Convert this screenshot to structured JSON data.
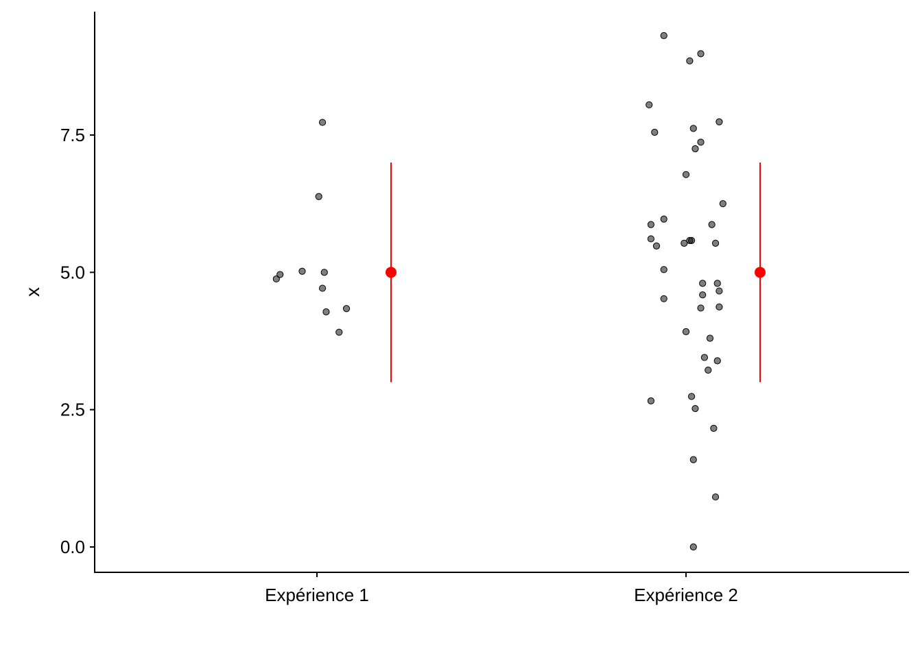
{
  "chart_data": {
    "type": "scatter",
    "title": "",
    "xlabel": "",
    "ylabel": "x",
    "ylim": [
      -0.9,
      9.65
    ],
    "y_ticks": [
      0.0,
      2.5,
      5.0,
      7.5
    ],
    "y_tick_labels": [
      "0.0",
      "2.5",
      "5.0",
      "7.5"
    ],
    "categories": [
      "Expérience 1",
      "Expérience 2"
    ],
    "grid": false,
    "legend": "none",
    "point_color": "#000000",
    "summary_color": "#ff0000",
    "series": [
      {
        "category": "Expérience 1",
        "points": [
          {
            "x": 1.015,
            "y": 7.73
          },
          {
            "x": 1.005,
            "y": 6.38
          },
          {
            "x": 0.96,
            "y": 5.02
          },
          {
            "x": 1.02,
            "y": 5.0
          },
          {
            "x": 0.9,
            "y": 4.96
          },
          {
            "x": 0.89,
            "y": 4.88
          },
          {
            "x": 1.015,
            "y": 4.71
          },
          {
            "x": 1.08,
            "y": 4.34
          },
          {
            "x": 1.025,
            "y": 4.28
          },
          {
            "x": 1.06,
            "y": 3.91
          }
        ],
        "summary": {
          "mean": 5.0,
          "lower": 3.0,
          "upper": 7.0
        }
      },
      {
        "category": "Expérience 2",
        "points": [
          {
            "x": 0.94,
            "y": 9.31
          },
          {
            "x": 1.04,
            "y": 8.98
          },
          {
            "x": 1.01,
            "y": 8.85
          },
          {
            "x": 0.9,
            "y": 8.05
          },
          {
            "x": 1.09,
            "y": 7.74
          },
          {
            "x": 1.02,
            "y": 7.62
          },
          {
            "x": 0.915,
            "y": 7.55
          },
          {
            "x": 1.04,
            "y": 7.37
          },
          {
            "x": 1.025,
            "y": 7.25
          },
          {
            "x": 1.0,
            "y": 6.78
          },
          {
            "x": 1.1,
            "y": 6.25
          },
          {
            "x": 0.94,
            "y": 5.97
          },
          {
            "x": 0.905,
            "y": 5.87
          },
          {
            "x": 1.07,
            "y": 5.87
          },
          {
            "x": 0.905,
            "y": 5.61
          },
          {
            "x": 1.01,
            "y": 5.58
          },
          {
            "x": 1.015,
            "y": 5.58
          },
          {
            "x": 0.995,
            "y": 5.53
          },
          {
            "x": 1.08,
            "y": 5.53
          },
          {
            "x": 0.92,
            "y": 5.48
          },
          {
            "x": 0.94,
            "y": 5.05
          },
          {
            "x": 1.045,
            "y": 4.8
          },
          {
            "x": 1.085,
            "y": 4.8
          },
          {
            "x": 1.09,
            "y": 4.66
          },
          {
            "x": 1.045,
            "y": 4.59
          },
          {
            "x": 0.94,
            "y": 4.52
          },
          {
            "x": 1.09,
            "y": 4.37
          },
          {
            "x": 1.04,
            "y": 4.35
          },
          {
            "x": 1.0,
            "y": 3.92
          },
          {
            "x": 1.065,
            "y": 3.8
          },
          {
            "x": 1.05,
            "y": 3.45
          },
          {
            "x": 1.085,
            "y": 3.39
          },
          {
            "x": 1.06,
            "y": 3.22
          },
          {
            "x": 1.015,
            "y": 2.74
          },
          {
            "x": 0.905,
            "y": 2.66
          },
          {
            "x": 1.025,
            "y": 2.52
          },
          {
            "x": 1.075,
            "y": 2.16
          },
          {
            "x": 1.02,
            "y": 1.59
          },
          {
            "x": 1.08,
            "y": 0.91
          },
          {
            "x": 1.02,
            "y": 0.0
          }
        ],
        "summary": {
          "mean": 5.0,
          "lower": 3.0,
          "upper": 7.0
        }
      }
    ]
  }
}
